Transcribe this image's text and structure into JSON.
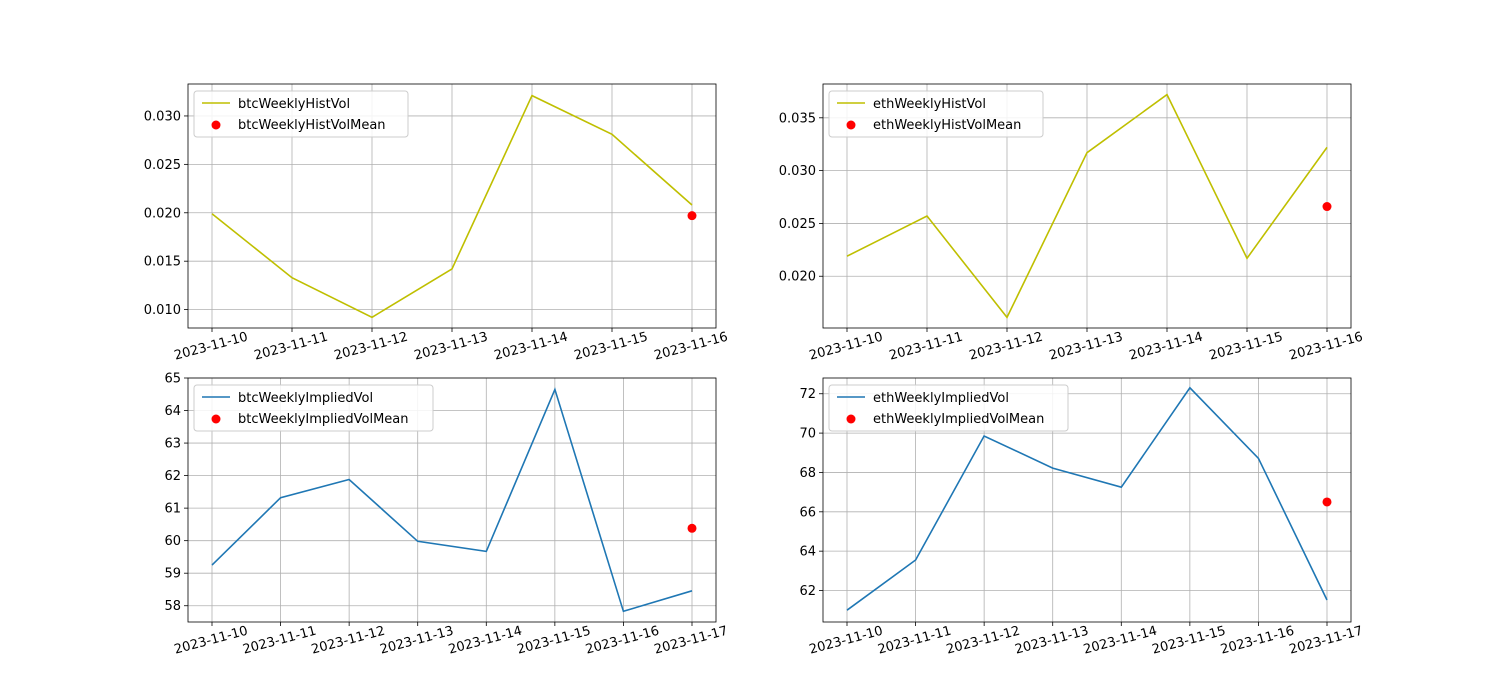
{
  "chart_data": [
    {
      "type": "line",
      "x": [
        "2023-11-10",
        "2023-11-11",
        "2023-11-12",
        "2023-11-13",
        "2023-11-14",
        "2023-11-15",
        "2023-11-16"
      ],
      "yticks": [
        "0.010",
        "0.015",
        "0.020",
        "0.025",
        "0.030"
      ],
      "ylim": [
        0.0081,
        0.0333
      ],
      "grid": true,
      "legend_position": "upper-left",
      "series": [
        {
          "name": "btcWeeklyHistVol",
          "kind": "line",
          "color": "#bfbf00",
          "values": [
            0.0199,
            0.0133,
            0.0092,
            0.0142,
            0.0321,
            0.0281,
            0.0208
          ]
        }
      ],
      "mean": {
        "name": "btcWeeklyHistVolMean",
        "kind": "scatter",
        "color": "#ff0000",
        "x": "2023-11-16",
        "value": 0.0197
      }
    },
    {
      "type": "line",
      "x": [
        "2023-11-10",
        "2023-11-11",
        "2023-11-12",
        "2023-11-13",
        "2023-11-14",
        "2023-11-15",
        "2023-11-16"
      ],
      "yticks": [
        "0.020",
        "0.025",
        "0.030",
        "0.035"
      ],
      "ylim": [
        0.0151,
        0.0382
      ],
      "grid": true,
      "legend_position": "upper-left",
      "series": [
        {
          "name": "ethWeeklyHistVol",
          "kind": "line",
          "color": "#bfbf00",
          "values": [
            0.0219,
            0.0257,
            0.0161,
            0.0317,
            0.0372,
            0.0217,
            0.0322
          ]
        }
      ],
      "mean": {
        "name": "ethWeeklyHistVolMean",
        "kind": "scatter",
        "color": "#ff0000",
        "x": "2023-11-16",
        "value": 0.0266
      }
    },
    {
      "type": "line",
      "x": [
        "2023-11-10",
        "2023-11-11",
        "2023-11-12",
        "2023-11-13",
        "2023-11-14",
        "2023-11-15",
        "2023-11-16",
        "2023-11-17"
      ],
      "yticks": [
        "58",
        "59",
        "60",
        "61",
        "62",
        "63",
        "64",
        "65"
      ],
      "ylim": [
        57.5,
        65.0
      ],
      "grid": true,
      "legend_position": "upper-left",
      "series": [
        {
          "name": "btcWeeklyImpliedVol",
          "kind": "line",
          "color": "#1f77b4",
          "values": [
            59.25,
            61.32,
            61.88,
            59.98,
            59.67,
            64.65,
            57.83,
            58.46
          ]
        }
      ],
      "mean": {
        "name": "btcWeeklyImpliedVolMean",
        "kind": "scatter",
        "color": "#ff0000",
        "x": "2023-11-17",
        "value": 60.38
      }
    },
    {
      "type": "line",
      "x": [
        "2023-11-10",
        "2023-11-11",
        "2023-11-12",
        "2023-11-13",
        "2023-11-14",
        "2023-11-15",
        "2023-11-16",
        "2023-11-17"
      ],
      "yticks": [
        "62",
        "64",
        "66",
        "68",
        "70",
        "72"
      ],
      "ylim": [
        60.4,
        72.8
      ],
      "grid": true,
      "legend_position": "upper-left",
      "series": [
        {
          "name": "ethWeeklyImpliedVol",
          "kind": "line",
          "color": "#1f77b4",
          "values": [
            61.0,
            63.55,
            69.85,
            68.22,
            67.25,
            72.3,
            68.72,
            61.52
          ]
        }
      ],
      "mean": {
        "name": "ethWeeklyImpliedVolMean",
        "kind": "scatter",
        "color": "#ff0000",
        "x": "2023-11-17",
        "value": 66.5
      }
    }
  ]
}
